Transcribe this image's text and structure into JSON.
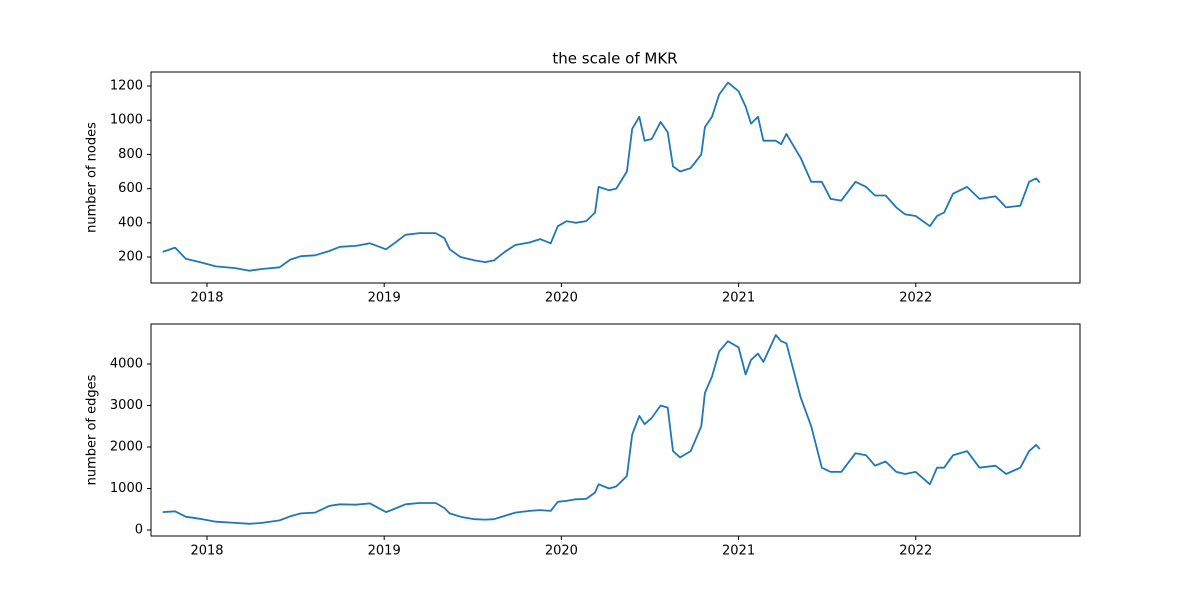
{
  "chart_data": [
    {
      "type": "line",
      "title": "the scale of MKR",
      "y_label": "number of nodes",
      "color": "#1f77b4",
      "x": [
        2017.75,
        2017.82,
        2017.88,
        2017.96,
        2018.05,
        2018.16,
        2018.24,
        2018.31,
        2018.41,
        2018.47,
        2018.53,
        2018.61,
        2018.69,
        2018.75,
        2018.84,
        2018.92,
        2019.01,
        2019.07,
        2019.12,
        2019.2,
        2019.29,
        2019.34,
        2019.37,
        2019.43,
        2019.51,
        2019.57,
        2019.62,
        2019.68,
        2019.74,
        2019.82,
        2019.88,
        2019.94,
        2019.98,
        2020.03,
        2020.08,
        2020.14,
        2020.19,
        2020.21,
        2020.27,
        2020.31,
        2020.37,
        2020.4,
        2020.44,
        2020.47,
        2020.51,
        2020.56,
        2020.6,
        2020.63,
        2020.67,
        2020.73,
        2020.79,
        2020.81,
        2020.85,
        2020.89,
        2020.94,
        2021.0,
        2021.04,
        2021.07,
        2021.11,
        2021.14,
        2021.21,
        2021.24,
        2021.27,
        2021.35,
        2021.41,
        2021.47,
        2021.52,
        2021.58,
        2021.66,
        2021.72,
        2021.77,
        2021.83,
        2021.89,
        2021.94,
        2022.0,
        2022.08,
        2022.12,
        2022.16,
        2022.21,
        2022.29,
        2022.36,
        2022.45,
        2022.51,
        2022.59,
        2022.64,
        2022.68,
        2022.7
      ],
      "values": [
        230,
        255,
        190,
        170,
        145,
        135,
        120,
        130,
        140,
        185,
        205,
        210,
        235,
        260,
        265,
        280,
        245,
        290,
        330,
        340,
        340,
        310,
        245,
        200,
        180,
        170,
        180,
        230,
        270,
        285,
        305,
        280,
        380,
        410,
        400,
        410,
        460,
        610,
        590,
        600,
        700,
        950,
        1020,
        880,
        890,
        990,
        930,
        730,
        700,
        720,
        800,
        960,
        1020,
        1150,
        1220,
        1170,
        1080,
        980,
        1020,
        880,
        880,
        860,
        920,
        780,
        640,
        640,
        540,
        530,
        640,
        610,
        560,
        560,
        490,
        450,
        440,
        380,
        440,
        460,
        570,
        610,
        540,
        555,
        490,
        500,
        640,
        660,
        635
      ],
      "xlim": [
        2017.684,
        2022.927
      ],
      "ylim": [
        48,
        1282
      ],
      "xticks": [
        2018,
        2019,
        2020,
        2021,
        2022
      ],
      "yticks": [
        200,
        400,
        600,
        800,
        1000,
        1200
      ]
    },
    {
      "type": "line",
      "y_label": "number of edges",
      "color": "#1f77b4",
      "x": [
        2017.75,
        2017.82,
        2017.88,
        2017.96,
        2018.05,
        2018.16,
        2018.24,
        2018.31,
        2018.41,
        2018.47,
        2018.53,
        2018.61,
        2018.69,
        2018.75,
        2018.84,
        2018.92,
        2019.01,
        2019.07,
        2019.12,
        2019.2,
        2019.29,
        2019.34,
        2019.37,
        2019.43,
        2019.51,
        2019.57,
        2019.62,
        2019.68,
        2019.74,
        2019.82,
        2019.88,
        2019.94,
        2019.98,
        2020.03,
        2020.08,
        2020.14,
        2020.19,
        2020.21,
        2020.27,
        2020.31,
        2020.37,
        2020.4,
        2020.44,
        2020.47,
        2020.51,
        2020.56,
        2020.6,
        2020.63,
        2020.67,
        2020.73,
        2020.79,
        2020.81,
        2020.85,
        2020.89,
        2020.94,
        2021.0,
        2021.04,
        2021.07,
        2021.11,
        2021.14,
        2021.21,
        2021.24,
        2021.27,
        2021.35,
        2021.41,
        2021.47,
        2021.52,
        2021.58,
        2021.66,
        2021.72,
        2021.77,
        2021.83,
        2021.89,
        2021.94,
        2022.0,
        2022.08,
        2022.12,
        2022.16,
        2022.21,
        2022.29,
        2022.36,
        2022.45,
        2022.51,
        2022.59,
        2022.64,
        2022.68,
        2022.7
      ],
      "values": [
        430,
        450,
        320,
        270,
        200,
        170,
        150,
        170,
        230,
        330,
        400,
        420,
        580,
        620,
        610,
        640,
        430,
        530,
        620,
        650,
        650,
        530,
        400,
        320,
        260,
        250,
        260,
        340,
        420,
        460,
        480,
        460,
        680,
        700,
        740,
        750,
        900,
        1100,
        1000,
        1050,
        1300,
        2300,
        2750,
        2550,
        2700,
        3000,
        2950,
        1900,
        1750,
        1900,
        2500,
        3300,
        3700,
        4300,
        4550,
        4400,
        3750,
        4100,
        4250,
        4050,
        4700,
        4550,
        4500,
        3200,
        2500,
        1500,
        1400,
        1400,
        1850,
        1800,
        1550,
        1650,
        1400,
        1350,
        1400,
        1100,
        1500,
        1500,
        1800,
        1900,
        1500,
        1550,
        1350,
        1500,
        1900,
        2050,
        1950
      ],
      "xlim": [
        2017.684,
        2022.927
      ],
      "ylim": [
        -145,
        4964
      ],
      "xticks": [
        2018,
        2019,
        2020,
        2021,
        2022
      ],
      "yticks": [
        0,
        1000,
        2000,
        3000,
        4000
      ]
    }
  ]
}
